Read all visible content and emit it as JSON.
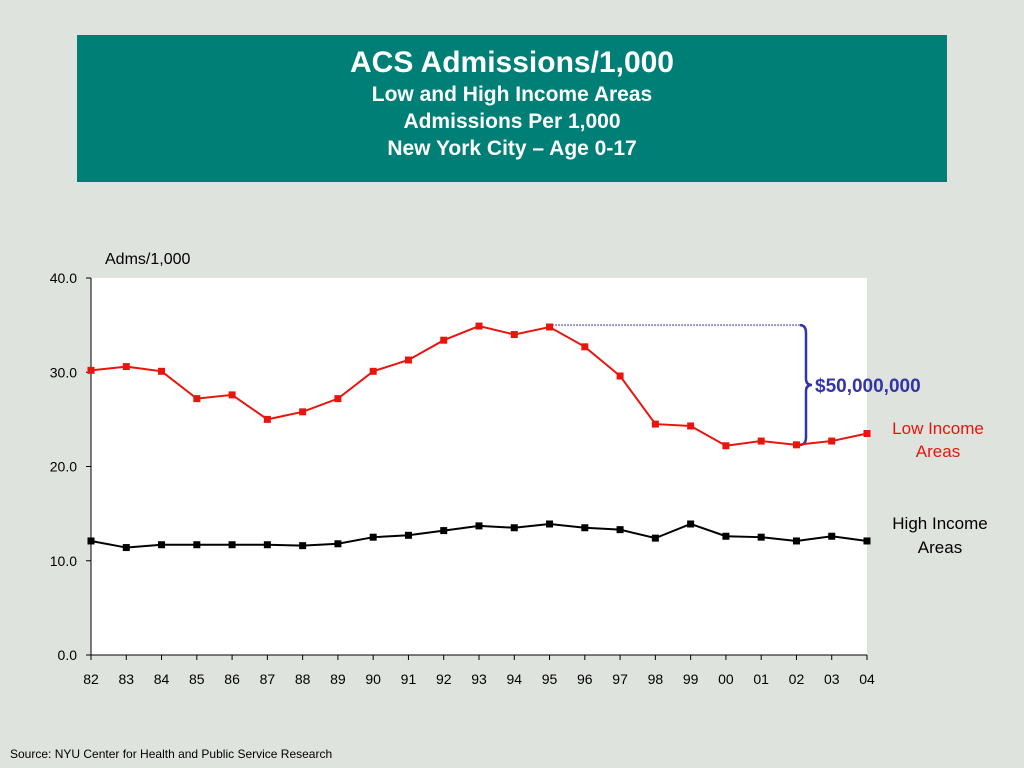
{
  "title": {
    "main": "ACS Admissions/1,000",
    "line1": "Low and High Income Areas",
    "line2": "Admissions Per 1,000",
    "line3": "New York City – Age 0-17"
  },
  "source": "Source:  NYU Center for Health and Public Service Research",
  "colors": {
    "header_bg": "#007f77",
    "low_income": "#e8150e",
    "high_income": "#000000",
    "annotation": "#3333aa"
  },
  "chart_data": {
    "type": "line",
    "ylabel": "Adms/1,000",
    "ylim": [
      0,
      40
    ],
    "yticks": [
      "0.0",
      "10.0",
      "20.0",
      "30.0",
      "40.0"
    ],
    "categories": [
      "82",
      "83",
      "84",
      "85",
      "86",
      "87",
      "88",
      "89",
      "90",
      "91",
      "92",
      "93",
      "94",
      "95",
      "96",
      "97",
      "98",
      "99",
      "00",
      "01",
      "02",
      "03",
      "04"
    ],
    "series": [
      {
        "name": "Low Income Areas",
        "values": [
          30.2,
          30.6,
          30.1,
          27.2,
          27.6,
          25.0,
          25.8,
          27.2,
          30.1,
          31.3,
          33.4,
          34.9,
          34.0,
          34.8,
          32.7,
          29.6,
          24.5,
          24.3,
          22.2,
          22.7,
          22.3,
          22.7,
          23.5
        ]
      },
      {
        "name": "High Income Areas",
        "values": [
          12.1,
          11.4,
          11.7,
          11.7,
          11.7,
          11.7,
          11.6,
          11.8,
          12.5,
          12.7,
          13.2,
          13.7,
          13.5,
          13.9,
          13.5,
          13.3,
          12.4,
          13.9,
          12.6,
          12.5,
          12.1,
          12.6,
          12.1
        ]
      }
    ],
    "legend": {
      "low_line1": "Low Income",
      "low_line2": "Areas",
      "high_line1": "High Income",
      "high_line2": "Areas"
    },
    "annotation": {
      "text": "$50,000,000",
      "from_category": "95",
      "y_top": 35.0,
      "y_bottom": 22.3
    },
    "grid": false,
    "legend_placement": "right"
  }
}
